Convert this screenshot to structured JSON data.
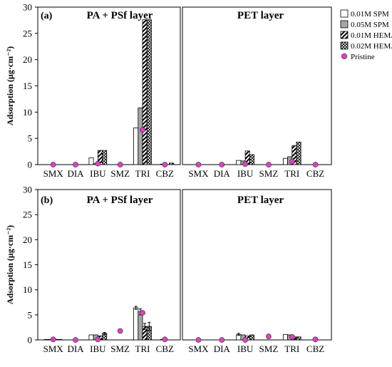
{
  "chart_data": {
    "type": "bar",
    "ylabel": "Adsorption (µg·cm⁻²)",
    "ylim": [
      0,
      30
    ],
    "yticks": [
      0,
      5,
      10,
      15,
      20,
      25,
      30
    ],
    "categories": [
      "SMX",
      "DIA",
      "IBU",
      "SMZ",
      "TRI",
      "CBZ"
    ],
    "legend": {
      "placement": "right of top row",
      "entries": [
        {
          "name": "0.01M SPM",
          "pattern": "white"
        },
        {
          "name": "0.05M SPM",
          "pattern": "gray"
        },
        {
          "name": "0.01M HEMA",
          "pattern": "diagonal-stripes"
        },
        {
          "name": "0.02M HEMA",
          "pattern": "crosshatch"
        },
        {
          "name": "Pristine",
          "pattern": "magenta-circle"
        }
      ]
    },
    "rows": [
      {
        "label": "(a)",
        "panels": [
          {
            "title": "PA + PSf layer",
            "series": [
              {
                "name": "0.01M SPM",
                "values": [
                  0,
                  0,
                  1.3,
                  0,
                  7.0,
                  0
                ]
              },
              {
                "name": "0.05M SPM",
                "values": [
                  0,
                  0,
                  0.2,
                  0,
                  10.8,
                  0.1
                ]
              },
              {
                "name": "0.01M HEMA",
                "values": [
                  0,
                  0,
                  2.7,
                  0,
                  27.6,
                  0
                ]
              },
              {
                "name": "0.02M HEMA",
                "values": [
                  0,
                  0,
                  2.7,
                  0,
                  27.6,
                  0.3
                ]
              }
            ],
            "pristine": [
              0,
              0,
              0.2,
              0,
              6.6,
              0
            ]
          },
          {
            "title": "PET layer",
            "series": [
              {
                "name": "0.01M SPM",
                "values": [
                  0,
                  0,
                  0.8,
                  0,
                  1.2,
                  0
                ]
              },
              {
                "name": "0.05M SPM",
                "values": [
                  0,
                  0,
                  0.7,
                  0,
                  1.5,
                  0
                ]
              },
              {
                "name": "0.01M HEMA",
                "values": [
                  0,
                  0,
                  2.6,
                  0,
                  3.6,
                  0
                ]
              },
              {
                "name": "0.02M HEMA",
                "values": [
                  0,
                  0,
                  1.9,
                  0,
                  4.3,
                  0
                ]
              }
            ],
            "pristine": [
              0,
              0,
              0.1,
              0,
              0.6,
              0
            ]
          }
        ]
      },
      {
        "label": "(b)",
        "panels": [
          {
            "title": "PA + PSf layer",
            "series": [
              {
                "name": "0.01M SPM",
                "values": [
                  0.1,
                  0,
                  1.0,
                  0,
                  6.4,
                  0
                ]
              },
              {
                "name": "0.05M SPM",
                "values": [
                  0.1,
                  0,
                  1.0,
                  0,
                  5.6,
                  0.1
                ]
              },
              {
                "name": "0.01M HEMA",
                "values": [
                  0.1,
                  0,
                  0.8,
                  0,
                  2.7,
                  0
                ]
              },
              {
                "name": "0.02M HEMA",
                "values": [
                  0.1,
                  0,
                  1.3,
                  0,
                  2.7,
                  0
                ]
              }
            ],
            "errors": [
              {
                "name": "0.01M SPM",
                "values": [
                  0,
                  0,
                  0,
                  0,
                  0.3,
                  0
                ]
              },
              {
                "name": "0.05M SPM",
                "values": [
                  0,
                  0,
                  0,
                  0,
                  0.6,
                  0
                ]
              },
              {
                "name": "0.01M HEMA",
                "values": [
                  0,
                  0,
                  0,
                  0,
                  0.6,
                  0
                ]
              },
              {
                "name": "0.02M HEMA",
                "values": [
                  0,
                  0,
                  0.2,
                  0,
                  0.8,
                  0
                ]
              }
            ],
            "pristine": [
              0.1,
              0,
              0.1,
              1.8,
              5.4,
              0.1
            ]
          },
          {
            "title": "PET layer",
            "series": [
              {
                "name": "0.01M SPM",
                "values": [
                  0,
                  0,
                  1.1,
                  0,
                  1.1,
                  0
                ]
              },
              {
                "name": "0.05M SPM",
                "values": [
                  0,
                  0,
                  1.0,
                  0,
                  1.0,
                  0
                ]
              },
              {
                "name": "0.01M HEMA",
                "values": [
                  0,
                  0,
                  0.8,
                  0,
                  0.6,
                  0
                ]
              },
              {
                "name": "0.02M HEMA",
                "values": [
                  0,
                  0,
                  1.0,
                  0,
                  0.6,
                  0
                ]
              }
            ],
            "errors": [
              {
                "name": "0.01M SPM",
                "values": [
                  0,
                  0,
                  0.2,
                  0,
                  0,
                  0
                ]
              },
              {
                "name": "0.05M SPM",
                "values": [
                  0,
                  0,
                  0,
                  0,
                  0,
                  0
                ]
              },
              {
                "name": "0.01M HEMA",
                "values": [
                  0,
                  0,
                  0,
                  0,
                  0,
                  0
                ]
              },
              {
                "name": "0.02M HEMA",
                "values": [
                  0,
                  0,
                  0,
                  0,
                  0,
                  0
                ]
              }
            ],
            "pristine": [
              0,
              0,
              0,
              0.7,
              0.6,
              0.1
            ]
          }
        ]
      }
    ]
  },
  "colors": {
    "spm01": "#ffffff",
    "spm05": "#a6a6a6",
    "pristine": "#e040c0",
    "stroke": "#000000"
  }
}
